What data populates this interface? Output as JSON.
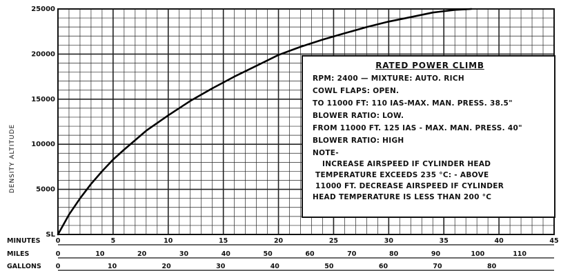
{
  "chart_data": {
    "type": "line",
    "title": "RATED POWER CLIMB",
    "ylabel": "DENSITY ALTITUDE",
    "ylim": [
      0,
      25000
    ],
    "xlim": [
      0,
      45
    ],
    "y_ticks": [
      "SL",
      "5000",
      "10000",
      "15000",
      "20000",
      "25000"
    ],
    "x_axes": [
      {
        "name": "MINUTES",
        "ticks": [
          "0",
          "5",
          "10",
          "15",
          "20",
          "25",
          "30",
          "35",
          "40",
          "45"
        ]
      },
      {
        "name": "MILES",
        "ticks": [
          "0",
          "10",
          "20",
          "30",
          "40",
          "50",
          "60",
          "70",
          "80",
          "90",
          "100",
          "110"
        ]
      },
      {
        "name": "GALLONS",
        "ticks": [
          "0",
          "10",
          "20",
          "30",
          "40",
          "50",
          "60",
          "70",
          "80"
        ]
      }
    ],
    "series": [
      {
        "x": [
          0,
          1,
          2,
          3,
          4,
          5,
          6,
          8,
          10,
          12,
          14,
          16,
          18,
          20,
          22,
          24,
          26,
          28,
          30,
          32,
          34,
          36,
          37.5
        ],
        "y": [
          0,
          2200,
          4000,
          5600,
          7000,
          8300,
          9400,
          11500,
          13200,
          14800,
          16200,
          17500,
          18700,
          19900,
          20800,
          21600,
          22300,
          23000,
          23600,
          24100,
          24600,
          24900,
          25000
        ]
      }
    ],
    "grid": true,
    "notes": {
      "heading": "RATED POWER CLIMB",
      "lines": [
        "RPM: 2400 — MIXTURE: AUTO. RICH",
        "COWL FLAPS: OPEN.",
        "TO 11000 FT: 110  IAS-MAX. MAN. PRESS. 38.5\"",
        "BLOWER  RATIO: LOW.",
        "FROM 11000 FT. 125  IAS - MAX. MAN. PRESS. 40\"",
        "BLOWER  RATIO: HIGH"
      ],
      "note_label": "NOTE-",
      "note_lines": [
        "INCREASE  AIRSPEED  IF  CYLINDER  HEAD",
        "TEMPERATURE  EXCEEDS 235 °C: - ABOVE",
        "11000 FT. DECREASE  AIRSPEED  IF  CYLINDER",
        "HEAD  TEMPERATURE  IS  LESS  THAN  200 °C"
      ]
    }
  }
}
